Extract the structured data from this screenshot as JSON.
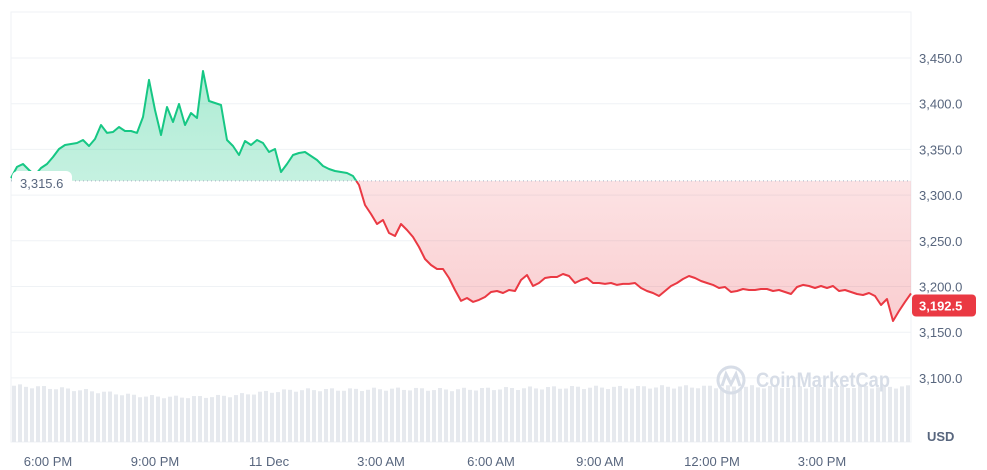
{
  "chart_data": {
    "type": "area",
    "unit_label": "USD",
    "watermark": "CoinMarketCap",
    "baseline": 3315.6,
    "baseline_label": "3,315.6",
    "last_value": 3192.5,
    "last_value_label": "3,192.5",
    "ylim": [
      3050,
      3500
    ],
    "y_ticks": [
      3100,
      3150,
      3200,
      3250,
      3300,
      3350,
      3400,
      3450
    ],
    "y_tick_labels": [
      "3,100.0",
      "3,150.0",
      "3,200.0",
      "3,250.0",
      "3,300.0",
      "3,350.0",
      "3,400.0",
      "3,450.0"
    ],
    "x_tick_labels": [
      "6:00 PM",
      "9:00 PM",
      "11 Dec",
      "3:00 AM",
      "6:00 AM",
      "9:00 AM",
      "12:00 PM",
      "3:00 PM"
    ],
    "grid": true,
    "colors": {
      "up": "#16c784",
      "down": "#ea3943",
      "up_fill": "#16c784",
      "down_fill": "#ea3943",
      "volume": "#e6e9ee",
      "grid": "#eff2f5"
    },
    "values": [
      3318.7,
      3330.8,
      3334.0,
      3327.5,
      3322.0,
      3329.7,
      3334.0,
      3341.7,
      3350.4,
      3354.8,
      3355.9,
      3357.0,
      3360.3,
      3353.7,
      3361.4,
      3376.7,
      3368.0,
      3369.0,
      3374.5,
      3370.1,
      3370.1,
      3368.0,
      3385.5,
      3426.0,
      3393.1,
      3365.8,
      3396.4,
      3380.0,
      3399.7,
      3376.7,
      3389.8,
      3384.4,
      3435.8,
      3403.0,
      3400.8,
      3398.6,
      3360.3,
      3353.7,
      3343.9,
      3359.2,
      3354.8,
      3360.3,
      3357.0,
      3347.2,
      3350.4,
      3325.3,
      3334.0,
      3343.9,
      3346.1,
      3347.2,
      3342.8,
      3338.4,
      3331.8,
      3328.6,
      3326.4,
      3325.3,
      3324.2,
      3320.9,
      3311.1,
      3289.2,
      3279.3,
      3268.4,
      3272.8,
      3258.5,
      3255.3,
      3268.4,
      3261.8,
      3254.2,
      3243.2,
      3230.1,
      3223.5,
      3219.2,
      3219.2,
      3209.3,
      3196.2,
      3184.2,
      3187.4,
      3183.1,
      3185.3,
      3188.5,
      3194.0,
      3195.1,
      3192.9,
      3196.2,
      3195.1,
      3207.1,
      3212.6,
      3200.6,
      3203.8,
      3209.3,
      3210.4,
      3210.4,
      3213.7,
      3211.5,
      3203.8,
      3207.1,
      3209.3,
      3203.8,
      3203.8,
      3202.8,
      3203.8,
      3201.7,
      3202.8,
      3202.8,
      3203.8,
      3198.4,
      3195.1,
      3192.9,
      3189.6,
      3195.1,
      3200.6,
      3203.8,
      3208.2,
      3211.5,
      3209.3,
      3206.0,
      3203.8,
      3201.7,
      3198.4,
      3199.5,
      3194.0,
      3195.1,
      3197.3,
      3196.2,
      3196.2,
      3197.3,
      3197.3,
      3195.1,
      3196.2,
      3194.0,
      3191.8,
      3199.5,
      3201.7,
      3200.6,
      3198.4,
      3200.6,
      3198.4,
      3200.6,
      3195.1,
      3196.2,
      3194.0,
      3191.8,
      3190.7,
      3192.9,
      3189.6,
      3179.8,
      3186.3,
      3162.3,
      3173.2,
      3183.1,
      3192.5
    ],
    "volume_relative": [
      1.0,
      0.97,
      0.93,
      0.88,
      0.82,
      0.8,
      0.8,
      0.82,
      0.88,
      0.92,
      0.93,
      0.93,
      0.94,
      0.94,
      0.93,
      0.94,
      0.95,
      0.96,
      0.97,
      0.97,
      0.97,
      0.98,
      0.98,
      0.98,
      0.98,
      0.98,
      0.98,
      0.98,
      0.98,
      0.98
    ]
  }
}
